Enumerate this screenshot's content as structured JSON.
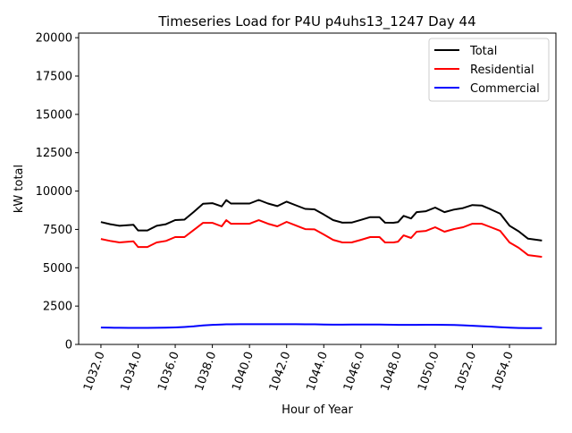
{
  "chart_data": {
    "type": "line",
    "title": "Timeseries Load for P4U p4uhs13_1247  Day 44",
    "xlabel": "Hour of Year",
    "ylabel": "kW total",
    "xlim": [
      1030.8,
      1056.5
    ],
    "ylim": [
      0,
      20300
    ],
    "xticks": [
      1032,
      1034,
      1036,
      1038,
      1040,
      1042,
      1044,
      1046,
      1048,
      1050,
      1052,
      1054
    ],
    "xtick_labels": [
      "1032.0",
      "1034.0",
      "1036.0",
      "1038.0",
      "1040.0",
      "1042.0",
      "1044.0",
      "1046.0",
      "1048.0",
      "1050.0",
      "1052.0",
      "1054.0"
    ],
    "yticks": [
      0,
      2500,
      5000,
      7500,
      10000,
      12500,
      15000,
      17500,
      20000
    ],
    "ytick_labels": [
      "0",
      "2500",
      "5000",
      "7500",
      "10000",
      "12500",
      "15000",
      "17500",
      "20000"
    ],
    "legend": {
      "position": "top-right",
      "entries": [
        "Total",
        "Residential",
        "Commercial"
      ]
    },
    "x": [
      1032,
      1032.5,
      1033,
      1033.5,
      1033.75,
      1034,
      1034.5,
      1035,
      1035.5,
      1036,
      1036.5,
      1037,
      1037.5,
      1038,
      1038.5,
      1038.75,
      1039,
      1039.5,
      1040,
      1040.5,
      1041,
      1041.5,
      1042,
      1042.5,
      1043,
      1043.5,
      1044,
      1044.5,
      1045,
      1045.5,
      1046,
      1046.5,
      1047,
      1047.3,
      1047.75,
      1048,
      1048.3,
      1048.7,
      1049,
      1049.5,
      1050,
      1050.5,
      1051,
      1051.5,
      1052,
      1052.5,
      1053,
      1053.5,
      1054,
      1054.5,
      1055,
      1055.75
    ],
    "series": [
      {
        "name": "Residential",
        "color": "#ff0000",
        "values": [
          6880,
          6750,
          6650,
          6700,
          6720,
          6350,
          6350,
          6650,
          6750,
          7000,
          7000,
          7460,
          7930,
          7930,
          7700,
          8100,
          7870,
          7870,
          7870,
          8100,
          7870,
          7700,
          7990,
          7750,
          7520,
          7500,
          7170,
          6820,
          6650,
          6650,
          6820,
          7000,
          7000,
          6650,
          6650,
          6700,
          7110,
          6940,
          7350,
          7400,
          7640,
          7350,
          7520,
          7640,
          7870,
          7870,
          7640,
          7400,
          6650,
          6300,
          5830,
          5710
        ]
      },
      {
        "name": "Commercial",
        "color": "#0000ff",
        "values": [
          1100,
          1090,
          1085,
          1080,
          1080,
          1080,
          1080,
          1085,
          1090,
          1110,
          1140,
          1180,
          1240,
          1280,
          1300,
          1310,
          1315,
          1320,
          1320,
          1320,
          1320,
          1320,
          1320,
          1320,
          1315,
          1310,
          1300,
          1290,
          1290,
          1295,
          1300,
          1300,
          1295,
          1290,
          1285,
          1280,
          1275,
          1275,
          1280,
          1285,
          1285,
          1280,
          1270,
          1250,
          1220,
          1190,
          1160,
          1120,
          1090,
          1075,
          1065,
          1060
        ]
      }
    ],
    "total": {
      "name": "Total",
      "color": "#000000"
    }
  }
}
